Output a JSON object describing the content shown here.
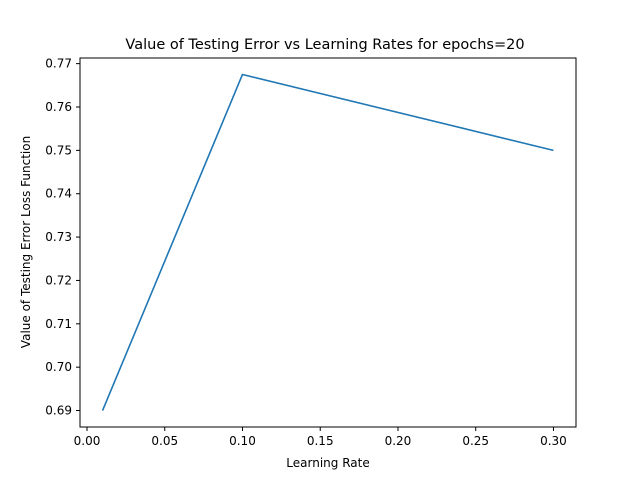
{
  "chart_data": {
    "type": "line",
    "title": "Value of Testing Error vs Learning Rates for epochs=20",
    "xlabel": "Learning Rate",
    "ylabel": "Value of Testing Error Loss Function",
    "xlim": [
      -0.0045,
      0.3145
    ],
    "ylim": [
      0.6862,
      0.7713
    ],
    "x_ticks": [
      0.0,
      0.05,
      0.1,
      0.15,
      0.2,
      0.25,
      0.3
    ],
    "x_tick_labels": [
      "0.00",
      "0.05",
      "0.10",
      "0.15",
      "0.20",
      "0.25",
      "0.30"
    ],
    "y_ticks": [
      0.69,
      0.7,
      0.71,
      0.72,
      0.73,
      0.74,
      0.75,
      0.76,
      0.77
    ],
    "y_tick_labels": [
      "0.69",
      "0.70",
      "0.71",
      "0.72",
      "0.73",
      "0.74",
      "0.75",
      "0.76",
      "0.77"
    ],
    "grid": false,
    "series": [
      {
        "x": [
          0.01,
          0.1,
          0.3
        ],
        "y": [
          0.69,
          0.7675,
          0.75
        ],
        "color": "#1f77b4"
      }
    ]
  }
}
